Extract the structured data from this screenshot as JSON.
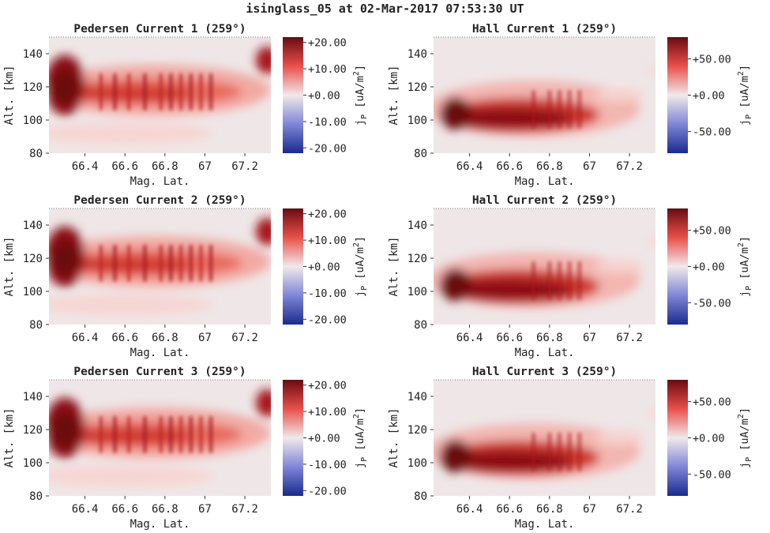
{
  "figure": {
    "suptitle": "isinglass_05 at 02-Mar-2017 07:53:30 UT"
  },
  "colors": {
    "cmap_low": "#1a2a8c",
    "cmap_mid": "#f0e9ea",
    "cmap_high": "#6b0a10",
    "background": "#efe6e7"
  },
  "chart_data": [
    {
      "type": "heatmap",
      "kind": "pedersen",
      "title": "Pedersen Current 1 (259°)",
      "xlabel": "Mag. Lat.",
      "ylabel": "Alt. [km]",
      "xlim": [
        66.22,
        67.33
      ],
      "ylim": [
        80,
        150
      ],
      "xticks": [
        66.4,
        66.6,
        66.8,
        67,
        67.2
      ],
      "xticklabels": [
        "66.4",
        "66.6",
        "66.8",
        "67",
        "67.2"
      ],
      "yticks": [
        80,
        100,
        120,
        140
      ],
      "yticklabels": [
        "80",
        "100",
        "120",
        "140"
      ],
      "colorbar": {
        "label": "jP [uA/m2]",
        "label_main": "j",
        "label_sub": "P",
        "label_unit": " [uA/m",
        "label_sup": "2",
        "label_close": "]",
        "vmin": -22,
        "vmax": 22,
        "ticks": [
          20,
          10,
          0,
          -10,
          -20
        ],
        "ticklabels": [
          "+20.00",
          "+10.00",
          "+0.00",
          "-10.00",
          "-20.00"
        ]
      }
    },
    {
      "type": "heatmap",
      "kind": "hall",
      "title": "Hall Current 1 (259°)",
      "xlabel": "Mag. Lat.",
      "ylabel": "Alt. [km]",
      "xlim": [
        66.22,
        67.33
      ],
      "ylim": [
        80,
        150
      ],
      "xticks": [
        66.4,
        66.6,
        66.8,
        67,
        67.2
      ],
      "xticklabels": [
        "66.4",
        "66.6",
        "66.8",
        "67",
        "67.2"
      ],
      "yticks": [
        80,
        100,
        120,
        140
      ],
      "yticklabels": [
        "80",
        "100",
        "120",
        "140"
      ],
      "colorbar": {
        "label": "jP [uA/m2]",
        "label_main": "j",
        "label_sub": "P",
        "label_unit": " [uA/m",
        "label_sup": "2",
        "label_close": "]",
        "vmin": -80,
        "vmax": 80,
        "ticks": [
          50,
          0,
          -50
        ],
        "ticklabels": [
          "+50.00",
          "+0.00",
          "-50.00"
        ]
      }
    },
    {
      "type": "heatmap",
      "kind": "pedersen",
      "title": "Pedersen Current 2 (259°)",
      "xlabel": "Mag. Lat.",
      "ylabel": "Alt. [km]",
      "xlim": [
        66.22,
        67.33
      ],
      "ylim": [
        80,
        150
      ],
      "xticks": [
        66.4,
        66.6,
        66.8,
        67,
        67.2
      ],
      "xticklabels": [
        "66.4",
        "66.6",
        "66.8",
        "67",
        "67.2"
      ],
      "yticks": [
        80,
        100,
        120,
        140
      ],
      "yticklabels": [
        "80",
        "100",
        "120",
        "140"
      ],
      "colorbar": {
        "label": "jP [uA/m2]",
        "label_main": "j",
        "label_sub": "P",
        "label_unit": " [uA/m",
        "label_sup": "2",
        "label_close": "]",
        "vmin": -22,
        "vmax": 22,
        "ticks": [
          20,
          10,
          0,
          -10,
          -20
        ],
        "ticklabels": [
          "+20.00",
          "+10.00",
          "+0.00",
          "-10.00",
          "-20.00"
        ]
      }
    },
    {
      "type": "heatmap",
      "kind": "hall",
      "title": "Hall Current 2 (259°)",
      "xlabel": "Mag. Lat.",
      "ylabel": "Alt. [km]",
      "xlim": [
        66.22,
        67.33
      ],
      "ylim": [
        80,
        150
      ],
      "xticks": [
        66.4,
        66.6,
        66.8,
        67,
        67.2
      ],
      "xticklabels": [
        "66.4",
        "66.6",
        "66.8",
        "67",
        "67.2"
      ],
      "yticks": [
        80,
        100,
        120,
        140
      ],
      "yticklabels": [
        "80",
        "100",
        "120",
        "140"
      ],
      "colorbar": {
        "label": "jP [uA/m2]",
        "label_main": "j",
        "label_sub": "P",
        "label_unit": " [uA/m",
        "label_sup": "2",
        "label_close": "]",
        "vmin": -80,
        "vmax": 80,
        "ticks": [
          50,
          0,
          -50
        ],
        "ticklabels": [
          "+50.00",
          "+0.00",
          "-50.00"
        ]
      }
    },
    {
      "type": "heatmap",
      "kind": "pedersen",
      "title": "Pedersen Current 3 (259°)",
      "xlabel": "Mag. Lat.",
      "ylabel": "Alt. [km]",
      "xlim": [
        66.22,
        67.33
      ],
      "ylim": [
        80,
        150
      ],
      "xticks": [
        66.4,
        66.6,
        66.8,
        67,
        67.2
      ],
      "xticklabels": [
        "66.4",
        "66.6",
        "66.8",
        "67",
        "67.2"
      ],
      "yticks": [
        80,
        100,
        120,
        140
      ],
      "yticklabels": [
        "80",
        "100",
        "120",
        "140"
      ],
      "colorbar": {
        "label": "jP [uA/m2]",
        "label_main": "j",
        "label_sub": "P",
        "label_unit": " [uA/m",
        "label_sup": "2",
        "label_close": "]",
        "vmin": -22,
        "vmax": 22,
        "ticks": [
          20,
          10,
          0,
          -10,
          -20
        ],
        "ticklabels": [
          "+20.00",
          "+10.00",
          "+0.00",
          "-10.00",
          "-20.00"
        ]
      }
    },
    {
      "type": "heatmap",
      "kind": "hall",
      "title": "Hall Current 3 (259°)",
      "xlabel": "Mag. Lat.",
      "ylabel": "Alt. [km]",
      "xlim": [
        66.22,
        67.33
      ],
      "ylim": [
        80,
        150
      ],
      "xticks": [
        66.4,
        66.6,
        66.8,
        67,
        67.2
      ],
      "xticklabels": [
        "66.4",
        "66.6",
        "66.8",
        "67",
        "67.2"
      ],
      "yticks": [
        80,
        100,
        120,
        140
      ],
      "yticklabels": [
        "80",
        "100",
        "120",
        "140"
      ],
      "colorbar": {
        "label": "jP [uA/m2]",
        "label_main": "j",
        "label_sub": "P",
        "label_unit": " [uA/m",
        "label_sup": "2",
        "label_close": "]",
        "vmin": -80,
        "vmax": 80,
        "ticks": [
          50,
          0,
          -50
        ],
        "ticklabels": [
          "+50.00",
          "+0.00",
          "-50.00"
        ]
      }
    }
  ]
}
